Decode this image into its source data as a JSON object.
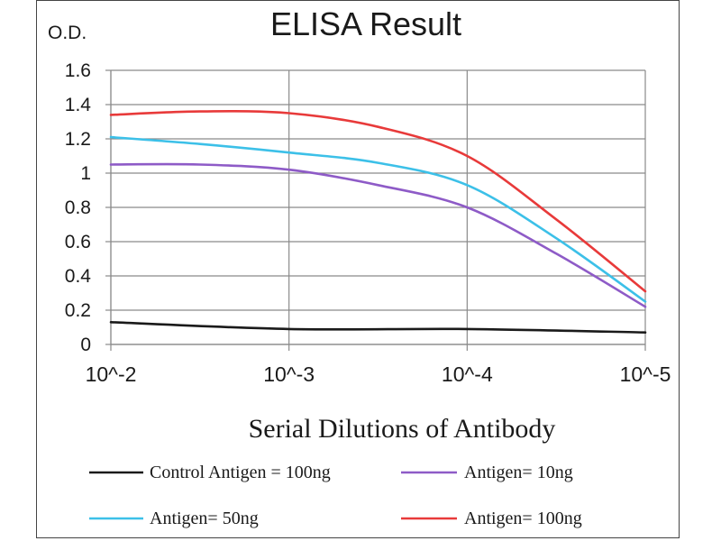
{
  "chart_data": {
    "type": "line",
    "title": "ELISA Result",
    "ylabel": "O.D.",
    "xlabel": "Serial Dilutions  of Antibody",
    "categories": [
      "10^-2",
      "10^-3",
      "10^-4",
      "10^-5"
    ],
    "ylim": [
      0,
      1.6
    ],
    "yticks": [
      0,
      0.2,
      0.4,
      0.6,
      0.8,
      1,
      1.2,
      1.4,
      1.6
    ],
    "ytick_labels": [
      "0",
      "0.2",
      "0.4",
      "0.6",
      "0.8",
      "1",
      "1.2",
      "1.4",
      "1.6"
    ],
    "grid": true,
    "legend_position": "bottom",
    "series": [
      {
        "name": "Control Antigen = 100ng",
        "color": "#1a1a1a",
        "x": [
          0,
          1,
          2,
          3
        ],
        "values": [
          0.13,
          0.09,
          0.09,
          0.07
        ]
      },
      {
        "name": "Antigen= 10ng",
        "color": "#8e5bc7",
        "x": [
          0,
          0.5,
          1,
          1.5,
          2,
          2.5,
          3
        ],
        "values": [
          1.05,
          1.05,
          1.02,
          0.93,
          0.8,
          0.53,
          0.22
        ]
      },
      {
        "name": "Antigen= 50ng",
        "color": "#3cc0e8",
        "x": [
          0,
          0.5,
          1,
          1.5,
          2,
          2.5,
          3
        ],
        "values": [
          1.21,
          1.17,
          1.12,
          1.06,
          0.93,
          0.62,
          0.25
        ]
      },
      {
        "name": "Antigen= 100ng",
        "color": "#e83a3a",
        "x": [
          0,
          0.5,
          1,
          1.5,
          2,
          2.5,
          3
        ],
        "values": [
          1.34,
          1.36,
          1.35,
          1.27,
          1.1,
          0.73,
          0.31
        ]
      }
    ]
  }
}
